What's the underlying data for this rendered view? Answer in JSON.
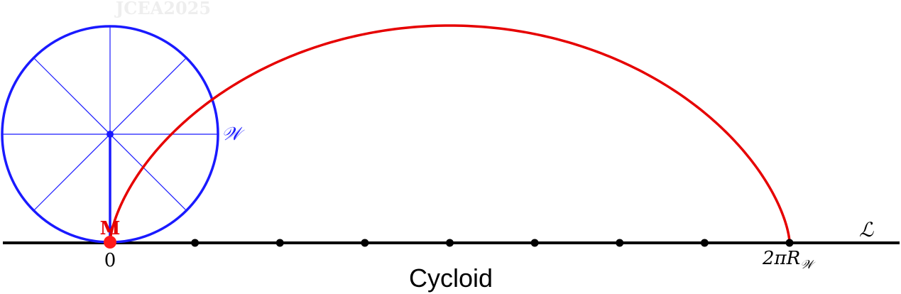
{
  "watermark": "JCEA2025",
  "title": "Cycloid",
  "labels": {
    "wheel": "𝒲",
    "line": "ℒ",
    "point": "M",
    "origin": "0",
    "end_prefix": "2πR",
    "end_subscript": "𝒲"
  },
  "ticks_count": 9,
  "colors": {
    "wheel": "#1a1aff",
    "curve": "#e60000",
    "point": "#ff1a1a",
    "line": "#000000",
    "watermark": "#eeeeee"
  }
}
